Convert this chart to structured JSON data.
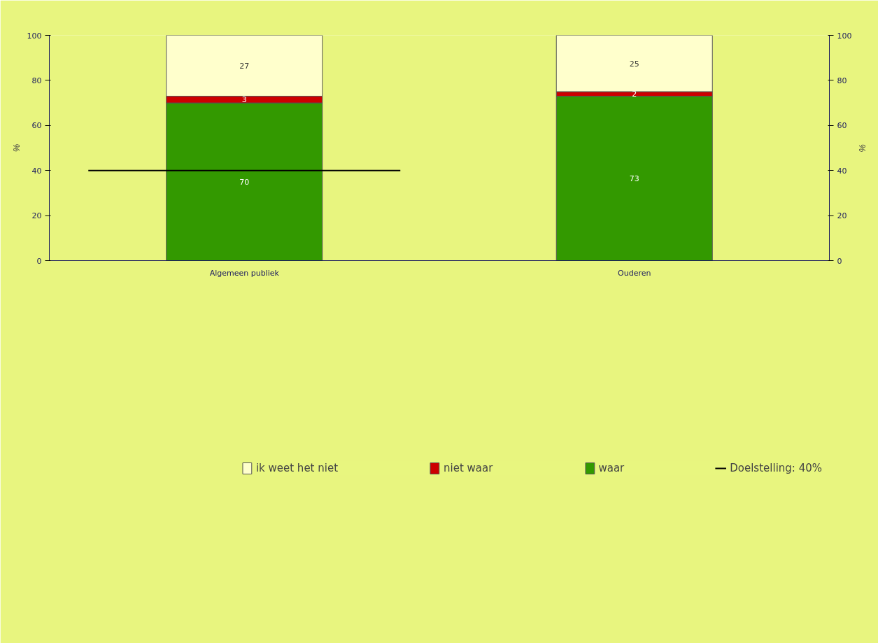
{
  "chart_data": {
    "type": "bar",
    "stacked": true,
    "categories": [
      "Algemeen publiek",
      "Ouderen"
    ],
    "series": [
      {
        "name": "waar",
        "color": "#339900",
        "values": [
          70,
          73
        ]
      },
      {
        "name": "niet waar",
        "color": "#cc0000",
        "values": [
          3,
          2
        ]
      },
      {
        "name": "ik weet het niet",
        "color": "#ffffcc",
        "values": [
          27,
          25
        ]
      }
    ],
    "ylabel": "%",
    "y2label": "%",
    "ylim": [
      0,
      100
    ],
    "yticks": [
      0,
      20,
      40,
      60,
      80,
      100
    ],
    "y2lim": [
      0,
      100
    ],
    "y2ticks": [
      0,
      20,
      40,
      60,
      80,
      100
    ],
    "ref_lines": [
      {
        "axis": "y",
        "value": 40,
        "label": "Doelstelling: 40%",
        "color": "#000000",
        "line_style": "solid"
      }
    ],
    "data_labels": true,
    "grid": false,
    "legend": "bottom"
  }
}
